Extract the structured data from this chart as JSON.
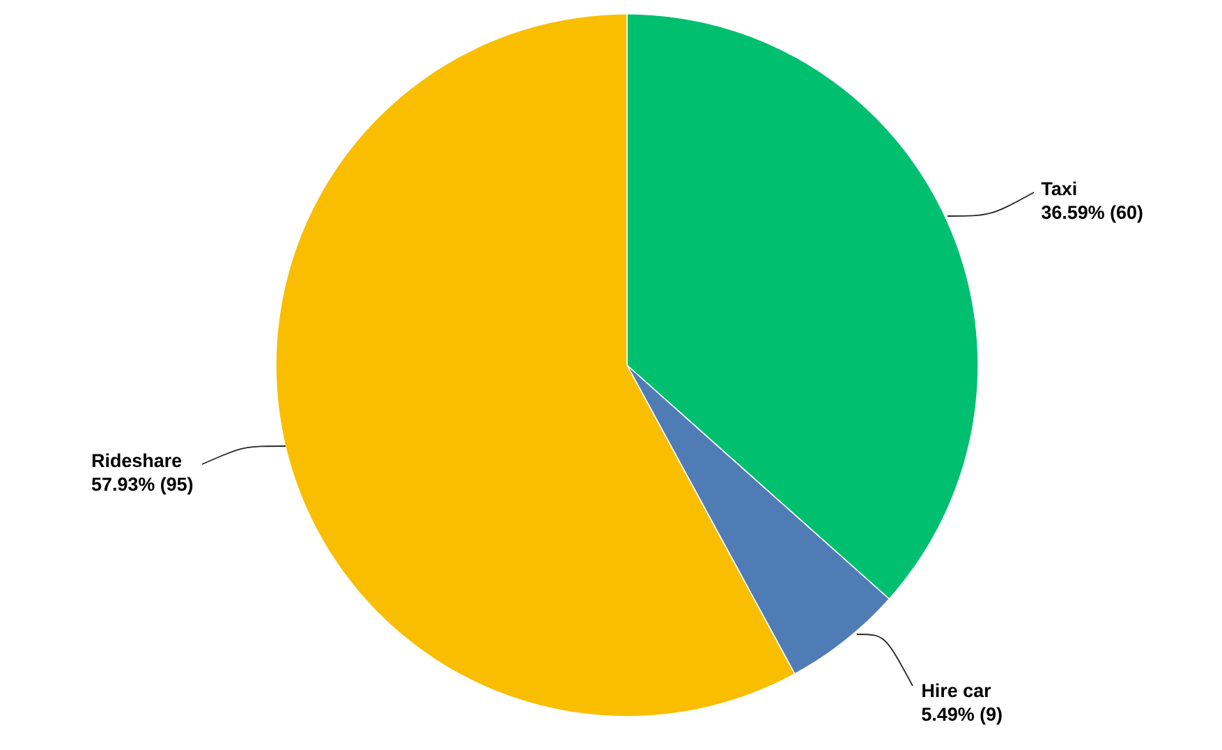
{
  "chart_data": {
    "type": "pie",
    "categories": [
      "Taxi",
      "Hire car",
      "Rideshare"
    ],
    "values": [
      60,
      9,
      95
    ],
    "colors": [
      "#00bf6f",
      "#507cb6",
      "#f9be00"
    ],
    "value_labels": [
      "36.59% (60)",
      "5.49% (9)",
      "57.93% (95)"
    ]
  }
}
